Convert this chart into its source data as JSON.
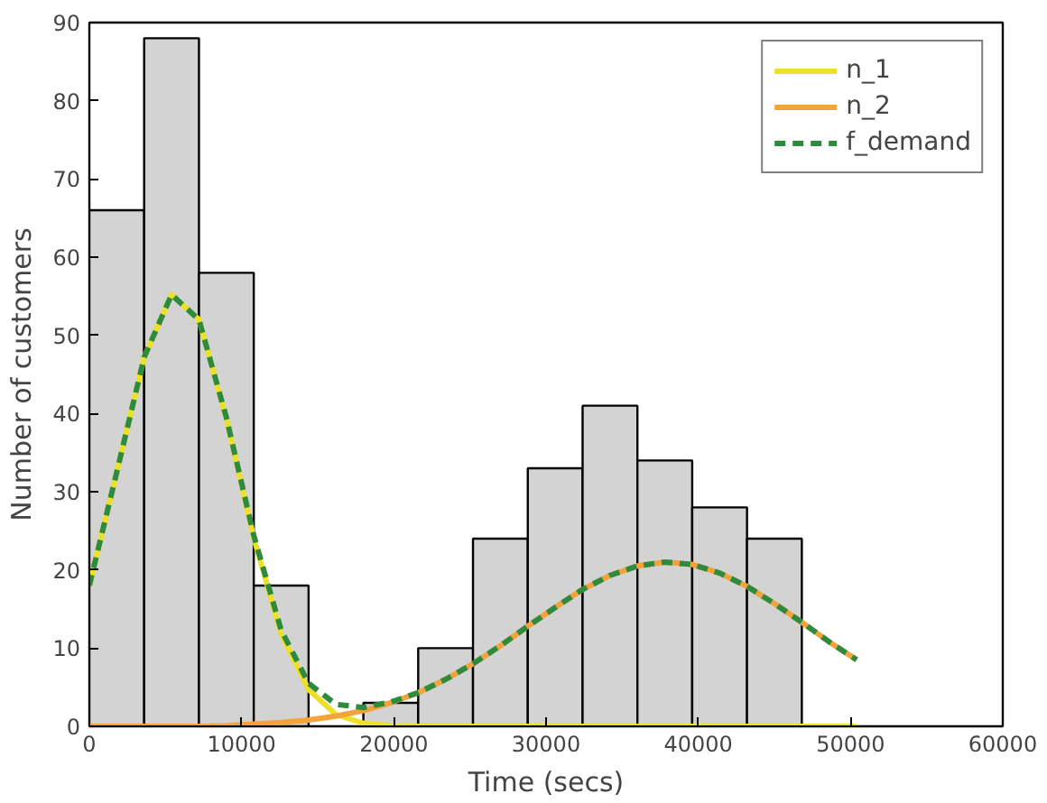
{
  "chart_data": {
    "type": "histogram",
    "xlabel": "Time (secs)",
    "ylabel": "Number of customers",
    "bins": [
      0,
      3600,
      7200,
      10800,
      14400,
      18000,
      21600,
      25200,
      28800,
      32400,
      36000,
      39600,
      43200,
      46800
    ],
    "values": [
      66,
      88,
      58,
      18,
      0,
      3,
      10,
      24,
      33,
      41,
      34,
      28,
      24
    ],
    "color": "#d3d3d3",
    "xlim": [
      0,
      60000
    ],
    "ylim": [
      0,
      90
    ],
    "xticks": [
      0,
      10000,
      20000,
      30000,
      40000,
      50000,
      60000
    ],
    "yticks": [
      0,
      10,
      20,
      30,
      40,
      50,
      60,
      70,
      80,
      90
    ],
    "grid": false,
    "legend": "top right",
    "series": [
      {
        "name": "n_1",
        "type": "line",
        "color": "#ede02a",
        "line_style": "solid",
        "x": [
          0,
          1800,
          3600,
          5400,
          7200,
          9000,
          10800,
          12600,
          14400,
          16200,
          18000,
          19800,
          21600,
          23400,
          25200,
          27000,
          28800,
          30600,
          32400,
          34200,
          36000,
          37800,
          39600,
          41400,
          43200,
          45000,
          46800,
          48600,
          50400
        ],
        "values": [
          18.0,
          32.5,
          47.2,
          55.2,
          52.0,
          39.4,
          24.1,
          11.8,
          4.7,
          1.5,
          0.4,
          0.1,
          0,
          0,
          0,
          0,
          0,
          0,
          0,
          0,
          0,
          0,
          0,
          0,
          0,
          0,
          0,
          0,
          0
        ]
      },
      {
        "name": "n_2",
        "type": "line",
        "color": "#f4a23a",
        "line_style": "solid",
        "x": [
          0,
          1800,
          3600,
          5400,
          7200,
          9000,
          10800,
          12600,
          14400,
          16200,
          18000,
          19800,
          21600,
          23400,
          25200,
          27000,
          28800,
          30600,
          32400,
          34200,
          36000,
          37800,
          39600,
          41400,
          43200,
          45000,
          46800,
          48600,
          50400
        ],
        "values": [
          0,
          0,
          0,
          0,
          0,
          0.1,
          0.3,
          0.5,
          0.8,
          1.3,
          2.0,
          3.0,
          4.3,
          6.0,
          8.0,
          10.3,
          12.8,
          15.2,
          17.5,
          19.3,
          20.5,
          21.0,
          20.7,
          19.6,
          17.9,
          15.7,
          13.3,
          10.8,
          8.5
        ]
      },
      {
        "name": "f_demand",
        "type": "line",
        "color": "#2e8b3e",
        "line_style": "dashed",
        "x": [
          0,
          1800,
          3600,
          5400,
          7200,
          9000,
          10800,
          12600,
          14400,
          16200,
          18000,
          19800,
          21600,
          23400,
          25200,
          27000,
          28800,
          30600,
          32400,
          34200,
          36000,
          37800,
          39600,
          41400,
          43200,
          45000,
          46800,
          48600,
          50400
        ],
        "values": [
          18.0,
          32.5,
          47.2,
          55.2,
          52.0,
          39.5,
          24.4,
          12.3,
          5.5,
          2.8,
          2.4,
          3.1,
          4.3,
          6.0,
          8.0,
          10.3,
          12.8,
          15.2,
          17.5,
          19.3,
          20.5,
          21.0,
          20.7,
          19.6,
          17.9,
          15.7,
          13.3,
          10.8,
          8.5
        ]
      }
    ]
  }
}
